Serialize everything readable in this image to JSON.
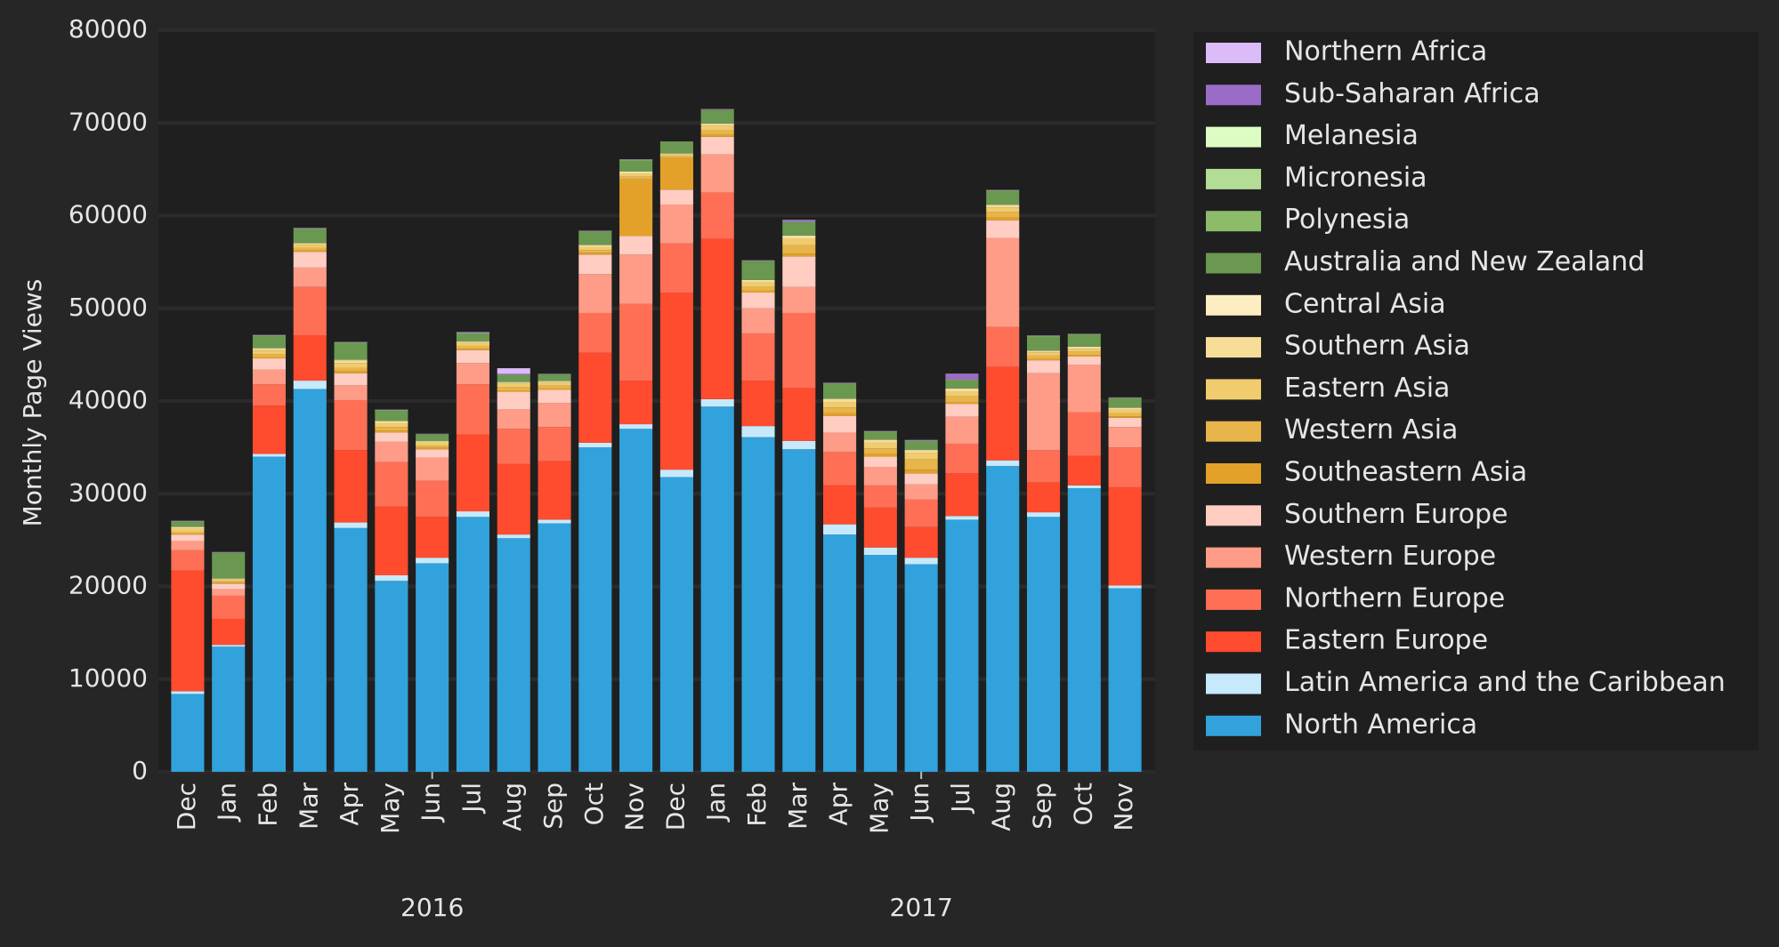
{
  "chart_data": {
    "type": "stacked_bar",
    "y_label": "Monthly Page Views",
    "categories": [
      "Dec",
      "Jan",
      "Feb",
      "Mar",
      "Apr",
      "May",
      "Jun",
      "Jul",
      "Aug",
      "Sep",
      "Oct",
      "Nov",
      "Dec",
      "Jan",
      "Feb",
      "Mar",
      "Apr",
      "May",
      "Jun",
      "Jul",
      "Aug",
      "Sep",
      "Oct",
      "Nov"
    ],
    "year_labels": [
      "2016",
      "2017"
    ],
    "ylim": [
      0,
      80000
    ],
    "yticks": [
      0,
      10000,
      20000,
      30000,
      40000,
      50000,
      60000,
      70000,
      80000
    ],
    "grid": true,
    "legend": "right",
    "series": [
      {
        "name": "North America",
        "color": "#31a2dc",
        "values": [
          8400,
          13500,
          34000,
          41300,
          26300,
          20600,
          22500,
          27500,
          25200,
          26800,
          35000,
          37000,
          31800,
          39400,
          36100,
          34800,
          25600,
          23400,
          22400,
          27200,
          33000,
          27500,
          30600,
          19800
        ]
      },
      {
        "name": "Latin America and the Caribbean",
        "color": "#c6e9fb",
        "values": [
          300,
          200,
          300,
          900,
          600,
          600,
          600,
          600,
          400,
          400,
          500,
          500,
          800,
          800,
          1200,
          900,
          1100,
          800,
          700,
          400,
          600,
          500,
          300,
          300
        ]
      },
      {
        "name": "Eastern Europe",
        "color": "#ff4b2e",
        "values": [
          13000,
          2800,
          5200,
          4900,
          7800,
          7400,
          4400,
          8300,
          7600,
          6300,
          9700,
          4700,
          19100,
          17300,
          4900,
          5700,
          4200,
          4300,
          3300,
          4600,
          10100,
          3200,
          3200,
          10600
        ]
      },
      {
        "name": "Northern Europe",
        "color": "#ff6f55",
        "values": [
          2200,
          2500,
          2300,
          5200,
          5400,
          4800,
          3900,
          5400,
          3800,
          3700,
          4300,
          8300,
          5300,
          5000,
          5100,
          8100,
          3600,
          2400,
          3000,
          3200,
          4300,
          3500,
          4700,
          4300
        ]
      },
      {
        "name": "Western Europe",
        "color": "#ff9c88",
        "values": [
          1000,
          700,
          1600,
          2100,
          1600,
          2200,
          2500,
          2300,
          2100,
          2600,
          4200,
          5300,
          4200,
          4100,
          2700,
          2800,
          2100,
          2000,
          1600,
          2900,
          9600,
          8300,
          5100,
          2200
        ]
      },
      {
        "name": "Southern Europe",
        "color": "#ffcdc2",
        "values": [
          700,
          600,
          1200,
          1700,
          1300,
          1000,
          900,
          1400,
          1900,
          1400,
          2100,
          2000,
          1600,
          1900,
          1700,
          3300,
          1800,
          1100,
          1200,
          1400,
          1900,
          1400,
          900,
          1000
        ]
      },
      {
        "name": "Southeastern Asia",
        "color": "#e3a12a",
        "values": [
          100,
          100,
          150,
          150,
          200,
          200,
          150,
          150,
          150,
          150,
          200,
          6100,
          3400,
          200,
          200,
          300,
          300,
          300,
          400,
          200,
          300,
          150,
          150,
          150
        ]
      },
      {
        "name": "Western Asia",
        "color": "#e8b54a",
        "values": [
          200,
          150,
          300,
          300,
          400,
          400,
          250,
          300,
          350,
          300,
          300,
          300,
          200,
          500,
          400,
          900,
          600,
          600,
          1100,
          600,
          600,
          350,
          350,
          350
        ]
      },
      {
        "name": "Eastern Asia",
        "color": "#f0cc6e",
        "values": [
          300,
          200,
          400,
          300,
          500,
          400,
          300,
          300,
          350,
          300,
          300,
          300,
          200,
          500,
          500,
          700,
          600,
          600,
          700,
          500,
          500,
          350,
          350,
          350
        ]
      },
      {
        "name": "Southern Asia",
        "color": "#f8dd98",
        "values": [
          200,
          100,
          200,
          150,
          300,
          200,
          150,
          150,
          150,
          150,
          200,
          200,
          100,
          200,
          200,
          300,
          300,
          300,
          300,
          300,
          200,
          150,
          150,
          200
        ]
      },
      {
        "name": "Central Asia",
        "color": "#fdeec2",
        "values": [
          50,
          30,
          50,
          50,
          50,
          50,
          30,
          50,
          50,
          50,
          50,
          50,
          30,
          50,
          50,
          50,
          50,
          50,
          50,
          50,
          50,
          50,
          50,
          50
        ]
      },
      {
        "name": "Australia and New Zealand",
        "color": "#6a9850",
        "values": [
          500,
          2700,
          1300,
          1500,
          1800,
          1100,
          700,
          800,
          700,
          700,
          1400,
          1200,
          1200,
          1400,
          2000,
          1400,
          1600,
          800,
          900,
          900,
          1500,
          1500,
          1300,
          1000
        ]
      },
      {
        "name": "Polynesia",
        "color": "#8cbc6a",
        "values": [
          50,
          50,
          50,
          50,
          50,
          50,
          30,
          50,
          50,
          30,
          50,
          50,
          30,
          50,
          50,
          50,
          50,
          40,
          50,
          50,
          50,
          50,
          40,
          30
        ]
      },
      {
        "name": "Micronesia",
        "color": "#b3dc94",
        "values": [
          20,
          20,
          20,
          20,
          20,
          20,
          10,
          20,
          20,
          10,
          20,
          20,
          10,
          20,
          20,
          20,
          20,
          20,
          20,
          20,
          20,
          20,
          10,
          10
        ]
      },
      {
        "name": "Melanesia",
        "color": "#dcfcc4",
        "values": [
          10,
          10,
          10,
          10,
          10,
          10,
          10,
          20,
          20,
          10,
          10,
          10,
          10,
          10,
          10,
          20,
          10,
          10,
          10,
          10,
          10,
          10,
          10,
          10
        ]
      },
      {
        "name": "Sub-Saharan Africa",
        "color": "#9a6cc8",
        "values": [
          30,
          30,
          30,
          30,
          30,
          30,
          20,
          60,
          100,
          20,
          30,
          30,
          10,
          50,
          30,
          150,
          30,
          30,
          50,
          550,
          30,
          30,
          20,
          20
        ]
      },
      {
        "name": "Northern Africa",
        "color": "#dcbcf8",
        "values": [
          20,
          20,
          20,
          20,
          20,
          20,
          20,
          40,
          600,
          20,
          20,
          20,
          10,
          20,
          20,
          50,
          20,
          20,
          20,
          50,
          20,
          20,
          20,
          20
        ]
      }
    ]
  }
}
